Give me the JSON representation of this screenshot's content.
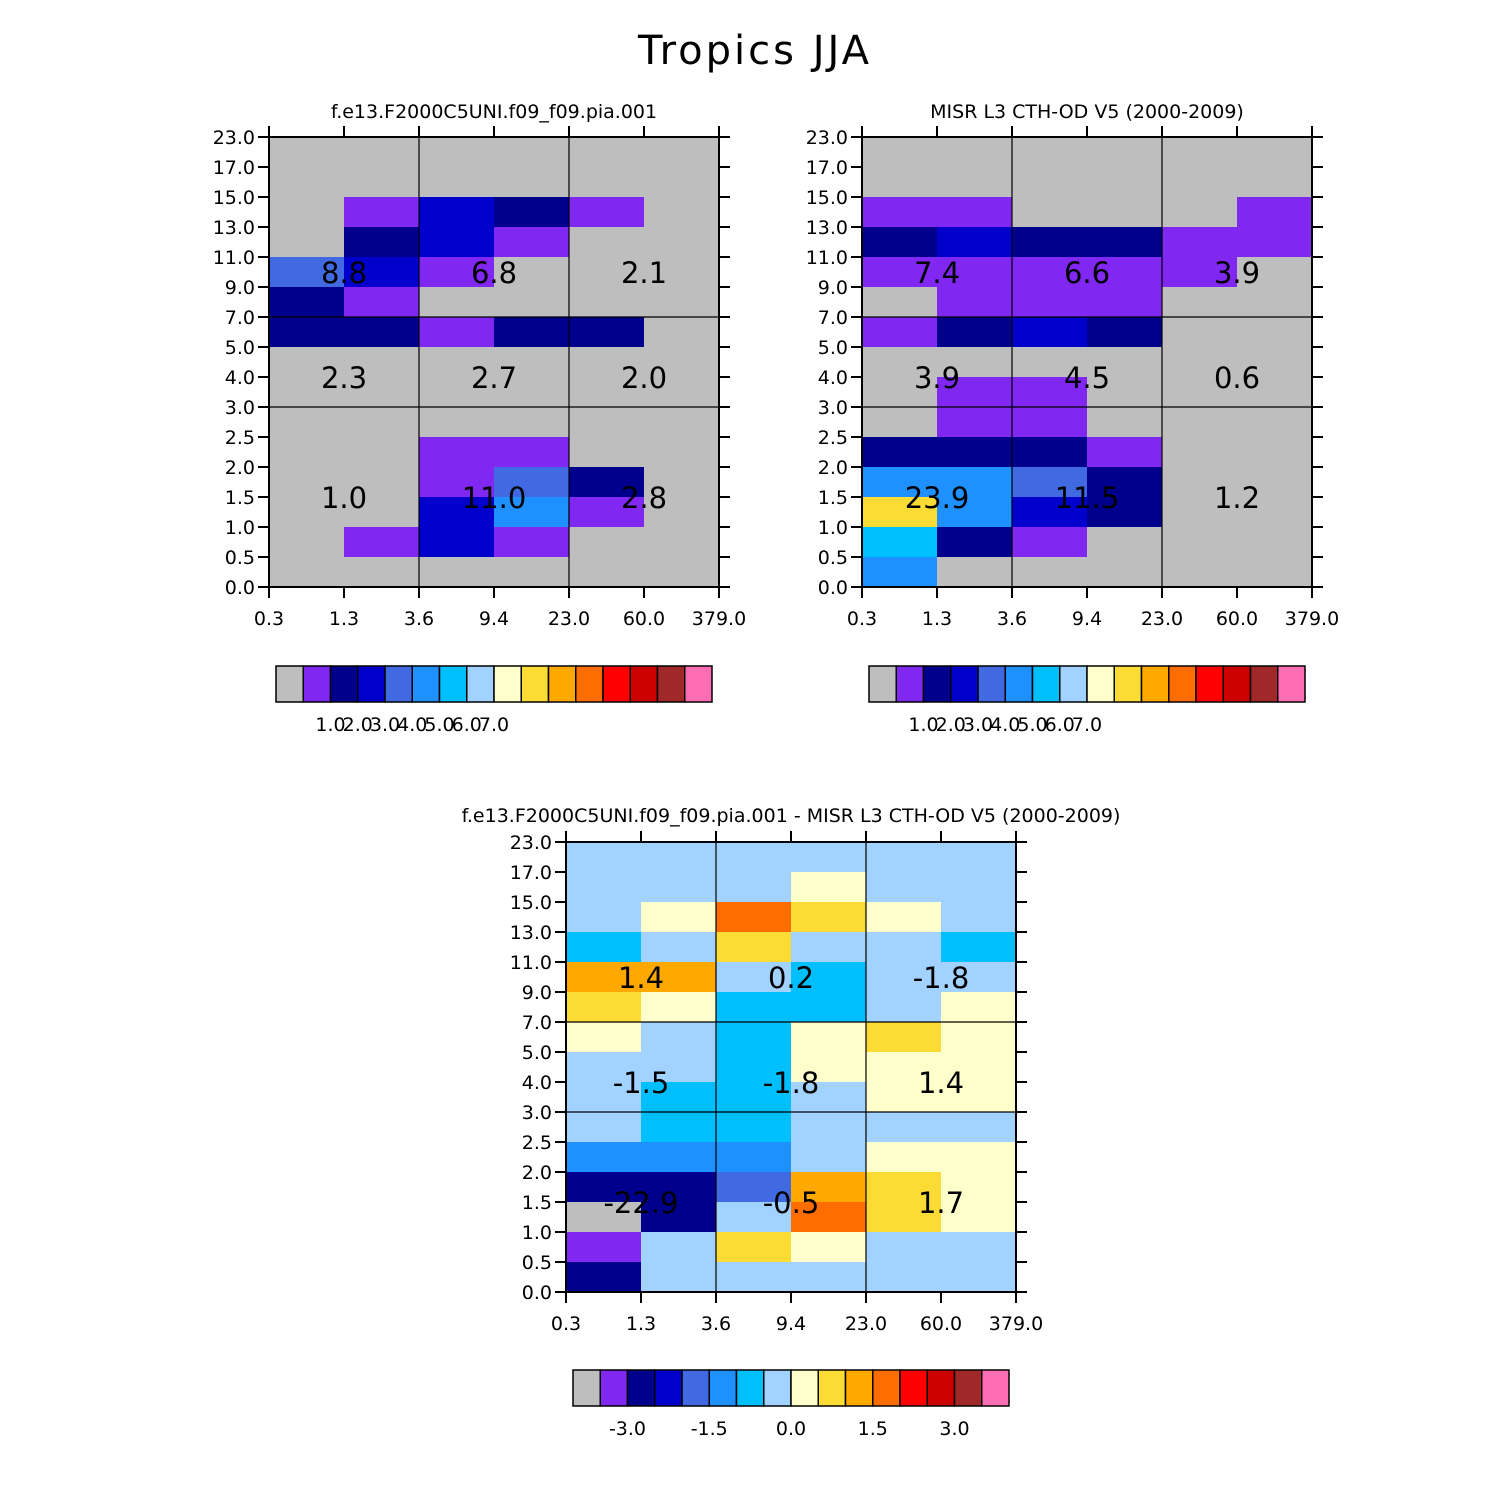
{
  "figure_title": "Tropics JJA",
  "colors": {
    "gray": "#bebebe",
    "palette": [
      "#bebebe",
      "#8127f2",
      "#00008c",
      "#0000cd",
      "#4169e1",
      "#1e90ff",
      "#00bfff",
      "#a2d2ff",
      "#ffffcc",
      "#fcdc34",
      "#ffa800",
      "#ff6d00",
      "#ff0000",
      "#cd0000",
      "#a02828",
      "#ff6eb4"
    ]
  },
  "chart_data": [
    {
      "type": "heatmap",
      "title": "f.e13.F2000C5UNI.f09_f09.pia.001",
      "x_tick_labels": [
        "0.3",
        "1.3",
        "3.6",
        "9.4",
        "23.0",
        "60.0",
        "379.0"
      ],
      "y_tick_labels": [
        "0.0",
        "0.5",
        "1.0",
        "1.5",
        "2.0",
        "2.5",
        "3.0",
        "4.0",
        "5.0",
        "7.0",
        "9.0",
        "11.0",
        "13.0",
        "15.0",
        "17.0",
        "23.0"
      ],
      "color_index_rows_top_to_bottom": [
        [
          0,
          0,
          0,
          0,
          0,
          0
        ],
        [
          0,
          0,
          0,
          0,
          0,
          0
        ],
        [
          0,
          1,
          3,
          2,
          1,
          0
        ],
        [
          0,
          2,
          3,
          1,
          0,
          0
        ],
        [
          4,
          3,
          1,
          0,
          0,
          0
        ],
        [
          2,
          1,
          0,
          0,
          0,
          0
        ],
        [
          2,
          2,
          1,
          2,
          2,
          0
        ],
        [
          0,
          0,
          0,
          0,
          0,
          0
        ],
        [
          0,
          0,
          0,
          0,
          0,
          0
        ],
        [
          0,
          0,
          0,
          0,
          0,
          0
        ],
        [
          0,
          0,
          1,
          1,
          0,
          0
        ],
        [
          0,
          0,
          1,
          4,
          2,
          0
        ],
        [
          0,
          0,
          3,
          5,
          1,
          0
        ],
        [
          0,
          1,
          3,
          1,
          0,
          0
        ],
        [
          0,
          0,
          0,
          0,
          0,
          0
        ]
      ],
      "summary_values": [
        [
          "8.8",
          "6.8",
          "2.1"
        ],
        [
          "2.3",
          "2.7",
          "2.0"
        ],
        [
          "1.0",
          "11.0",
          "2.8"
        ]
      ],
      "colorbar_labels": [
        "1.0",
        "2.0",
        "3.0",
        "4.0",
        "5.0",
        "6.0",
        "7.0"
      ]
    },
    {
      "type": "heatmap",
      "title": "MISR L3 CTH-OD V5 (2000-2009)",
      "x_tick_labels": [
        "0.3",
        "1.3",
        "3.6",
        "9.4",
        "23.0",
        "60.0",
        "379.0"
      ],
      "y_tick_labels": [
        "0.0",
        "0.5",
        "1.0",
        "1.5",
        "2.0",
        "2.5",
        "3.0",
        "4.0",
        "5.0",
        "7.0",
        "9.0",
        "11.0",
        "13.0",
        "15.0",
        "17.0",
        "23.0"
      ],
      "color_index_rows_top_to_bottom": [
        [
          0,
          0,
          0,
          0,
          0,
          0
        ],
        [
          0,
          0,
          0,
          0,
          0,
          0
        ],
        [
          1,
          1,
          0,
          0,
          0,
          1
        ],
        [
          2,
          3,
          2,
          2,
          1,
          1
        ],
        [
          1,
          1,
          1,
          1,
          1,
          0
        ],
        [
          0,
          1,
          1,
          1,
          0,
          0
        ],
        [
          1,
          2,
          3,
          2,
          0,
          0
        ],
        [
          0,
          0,
          0,
          0,
          0,
          0
        ],
        [
          0,
          1,
          1,
          0,
          0,
          0
        ],
        [
          0,
          1,
          1,
          0,
          0,
          0
        ],
        [
          2,
          2,
          2,
          1,
          0,
          0
        ],
        [
          5,
          5,
          4,
          2,
          0,
          0
        ],
        [
          9,
          5,
          3,
          2,
          0,
          0
        ],
        [
          6,
          2,
          1,
          0,
          0,
          0
        ],
        [
          5,
          0,
          0,
          0,
          0,
          0
        ]
      ],
      "summary_values": [
        [
          "7.4",
          "6.6",
          "3.9"
        ],
        [
          "3.9",
          "4.5",
          "0.6"
        ],
        [
          "23.9",
          "11.5",
          "1.2"
        ]
      ],
      "colorbar_labels": [
        "1.0",
        "2.0",
        "3.0",
        "4.0",
        "5.0",
        "6.0",
        "7.0"
      ]
    },
    {
      "type": "heatmap",
      "title": "f.e13.F2000C5UNI.f09_f09.pia.001 - MISR L3 CTH-OD V5 (2000-2009)",
      "x_tick_labels": [
        "0.3",
        "1.3",
        "3.6",
        "9.4",
        "23.0",
        "60.0",
        "379.0"
      ],
      "y_tick_labels": [
        "0.0",
        "0.5",
        "1.0",
        "1.5",
        "2.0",
        "2.5",
        "3.0",
        "4.0",
        "5.0",
        "7.0",
        "9.0",
        "11.0",
        "13.0",
        "15.0",
        "17.0",
        "23.0"
      ],
      "color_index_rows_top_to_bottom": [
        [
          7,
          7,
          7,
          7,
          7,
          7
        ],
        [
          7,
          7,
          7,
          8,
          7,
          7
        ],
        [
          7,
          8,
          11,
          9,
          8,
          7
        ],
        [
          6,
          7,
          9,
          7,
          7,
          6
        ],
        [
          10,
          10,
          7,
          6,
          7,
          7
        ],
        [
          9,
          8,
          6,
          6,
          7,
          8
        ],
        [
          8,
          7,
          6,
          8,
          9,
          8
        ],
        [
          7,
          7,
          6,
          8,
          8,
          8
        ],
        [
          7,
          6,
          6,
          7,
          8,
          8
        ],
        [
          7,
          6,
          6,
          7,
          7,
          7
        ],
        [
          5,
          5,
          5,
          7,
          8,
          8
        ],
        [
          2,
          2,
          4,
          10,
          9,
          8
        ],
        [
          0,
          2,
          7,
          11,
          9,
          8
        ],
        [
          1,
          7,
          9,
          8,
          7,
          7
        ],
        [
          2,
          7,
          7,
          7,
          7,
          7
        ]
      ],
      "summary_values": [
        [
          "1.4",
          "0.2",
          "-1.8"
        ],
        [
          "-1.5",
          "-1.8",
          "1.4"
        ],
        [
          "-22.9",
          "-0.5",
          "1.7"
        ]
      ],
      "colorbar_labels": [
        "-3.0",
        "-1.5",
        "0.0",
        "1.5",
        "3.0"
      ]
    }
  ]
}
